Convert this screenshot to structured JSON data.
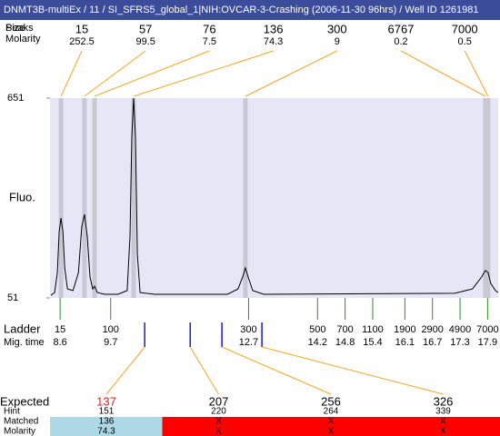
{
  "title": "DNMT3B-multiEx / 11 / SI_SFRS5_global_1|NIH:OVCAR-3-Crashing (2006-11-30 96hrs) / Well ID 1261981",
  "peaks": {
    "peaks_label": "Peaks",
    "size_label": "Size",
    "molarity_label": "Molarity",
    "line_color": "#f5a623",
    "band_color": "#c8c8d4",
    "items": [
      {
        "size": 15,
        "molarity": 252.5,
        "time": 8.62
      },
      {
        "size": 57,
        "molarity": 99.5,
        "time": 9.13
      },
      {
        "size": 76,
        "molarity": 7.5,
        "time": 9.35
      },
      {
        "size": 136,
        "molarity": 74.3,
        "time": 10.2
      },
      {
        "size": 300,
        "molarity": 9,
        "time": 12.63
      },
      {
        "size": 6767,
        "molarity": 0.2,
        "time": 17.85
      },
      {
        "size": 7000,
        "molarity": 0.5,
        "time": 17.91
      }
    ]
  },
  "plot": {
    "y_label": "Fluo.",
    "ylim": [
      51,
      651
    ],
    "yticks": [
      51,
      651
    ],
    "xlim": [
      8.38,
      18.13
    ],
    "background": "#e6e6f7",
    "trace": {
      "color": "#000000",
      "x": [
        8.4,
        8.48,
        8.54,
        8.58,
        8.62,
        8.66,
        8.7,
        8.76,
        8.88,
        9.0,
        9.07,
        9.13,
        9.19,
        9.25,
        9.31,
        9.35,
        9.41,
        9.57,
        9.86,
        10.06,
        10.12,
        10.16,
        10.2,
        10.24,
        10.28,
        10.34,
        10.66,
        12.24,
        12.47,
        12.57,
        12.63,
        12.69,
        12.79,
        13.03,
        17.18,
        17.57,
        17.77,
        17.85,
        17.91,
        17.97,
        18.07,
        18.13
      ],
      "y": [
        59,
        67,
        127,
        250,
        291,
        250,
        141,
        78,
        73,
        127,
        264,
        302,
        236,
        114,
        78,
        86,
        67,
        62,
        62,
        73,
        236,
        536,
        651,
        536,
        182,
        67,
        62,
        62,
        78,
        114,
        141,
        114,
        73,
        62,
        65,
        78,
        114,
        133,
        127,
        94,
        73,
        67
      ]
    }
  },
  "ladder": {
    "label": "Ladder",
    "time_label": "Mig. time",
    "color": "#2e8b2e",
    "items": [
      {
        "size": 15,
        "time": 8.6
      },
      {
        "size": 100,
        "time": 9.7
      },
      {
        "size": 300,
        "time": 12.7
      },
      {
        "size": 500,
        "time": 14.2
      },
      {
        "size": 700,
        "time": 14.8
      },
      {
        "size": 1100,
        "time": 15.4
      },
      {
        "size": 1900,
        "time": 16.1
      },
      {
        "size": 2900,
        "time": 16.7
      },
      {
        "size": 4900,
        "time": 17.3
      },
      {
        "size": 7000,
        "time": 17.9
      }
    ]
  },
  "expected": {
    "row_labels": [
      "Expected",
      "Hint",
      "Matched",
      "Molarity"
    ],
    "tick_color": "#1a1acc",
    "line_color": "#f5a623",
    "items": [
      {
        "expected": 137,
        "hint": 151,
        "matched": 136,
        "molarity": 74.3,
        "time": 10.44,
        "expected_color": "#e02020",
        "row_color": "#add8e6"
      },
      {
        "expected": 207,
        "hint": 220,
        "matched": "X",
        "molarity": "X",
        "time": 11.43,
        "expected_color": "#000000",
        "row_color": "#ff0000"
      },
      {
        "expected": 256,
        "hint": 264,
        "matched": "X",
        "molarity": "X",
        "time": 12.12,
        "expected_color": "#000000",
        "row_color": "#ff0000"
      },
      {
        "expected": 326,
        "hint": 339,
        "matched": "X",
        "molarity": "X",
        "time": 12.99,
        "expected_color": "#000000",
        "row_color": "#ff0000"
      }
    ]
  }
}
